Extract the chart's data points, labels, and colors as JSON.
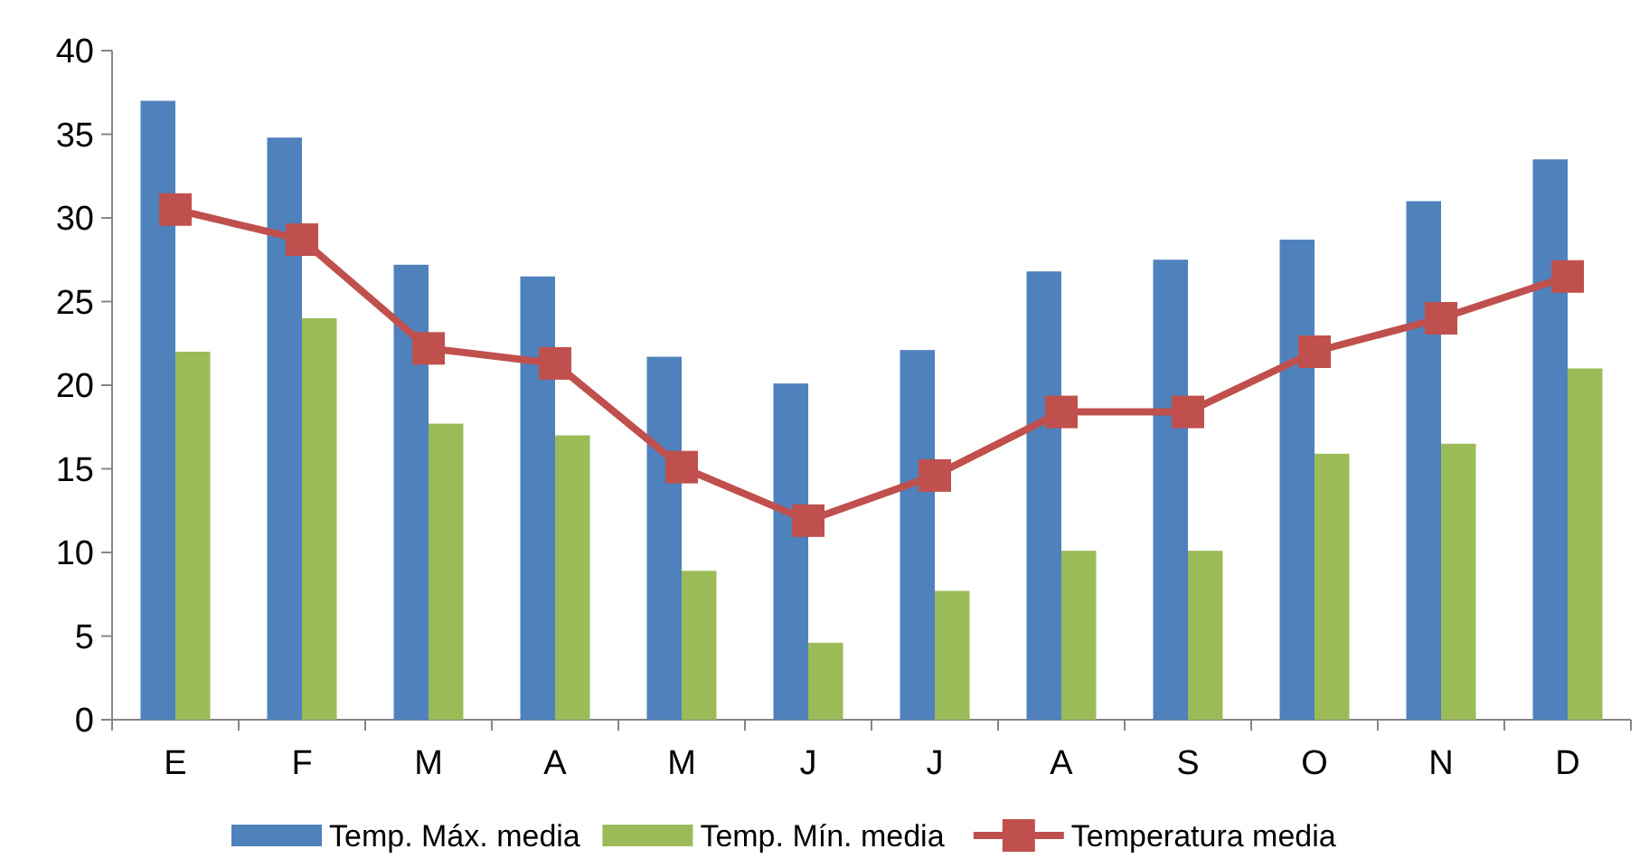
{
  "chart_data": {
    "type": "bar",
    "categories": [
      "E",
      "F",
      "M",
      "A",
      "M",
      "J",
      "J",
      "A",
      "S",
      "O",
      "N",
      "D"
    ],
    "series": [
      {
        "name": "Temp. Máx. media",
        "color": "#4f81bd",
        "values": [
          37,
          34.8,
          27.2,
          26.5,
          21.7,
          20.1,
          22.1,
          26.8,
          27.5,
          28.7,
          31,
          33.5
        ]
      },
      {
        "name": "Temp. Mín. media",
        "color": "#9bbb59",
        "values": [
          22,
          24,
          17.7,
          17,
          8.9,
          4.6,
          7.7,
          10.1,
          10.1,
          15.9,
          16.5,
          21
        ]
      },
      {
        "name": "Temperatura media",
        "type": "line",
        "color": "#c0504d",
        "marker": "square",
        "values": [
          30.5,
          28.7,
          22.2,
          21.3,
          15.1,
          11.9,
          14.6,
          18.4,
          18.4,
          22,
          24,
          26.5
        ]
      }
    ],
    "ylim": [
      0,
      40
    ],
    "yticks": [
      0,
      5,
      10,
      15,
      20,
      25,
      30,
      35,
      40
    ],
    "grid": false,
    "legend": "bottom"
  }
}
